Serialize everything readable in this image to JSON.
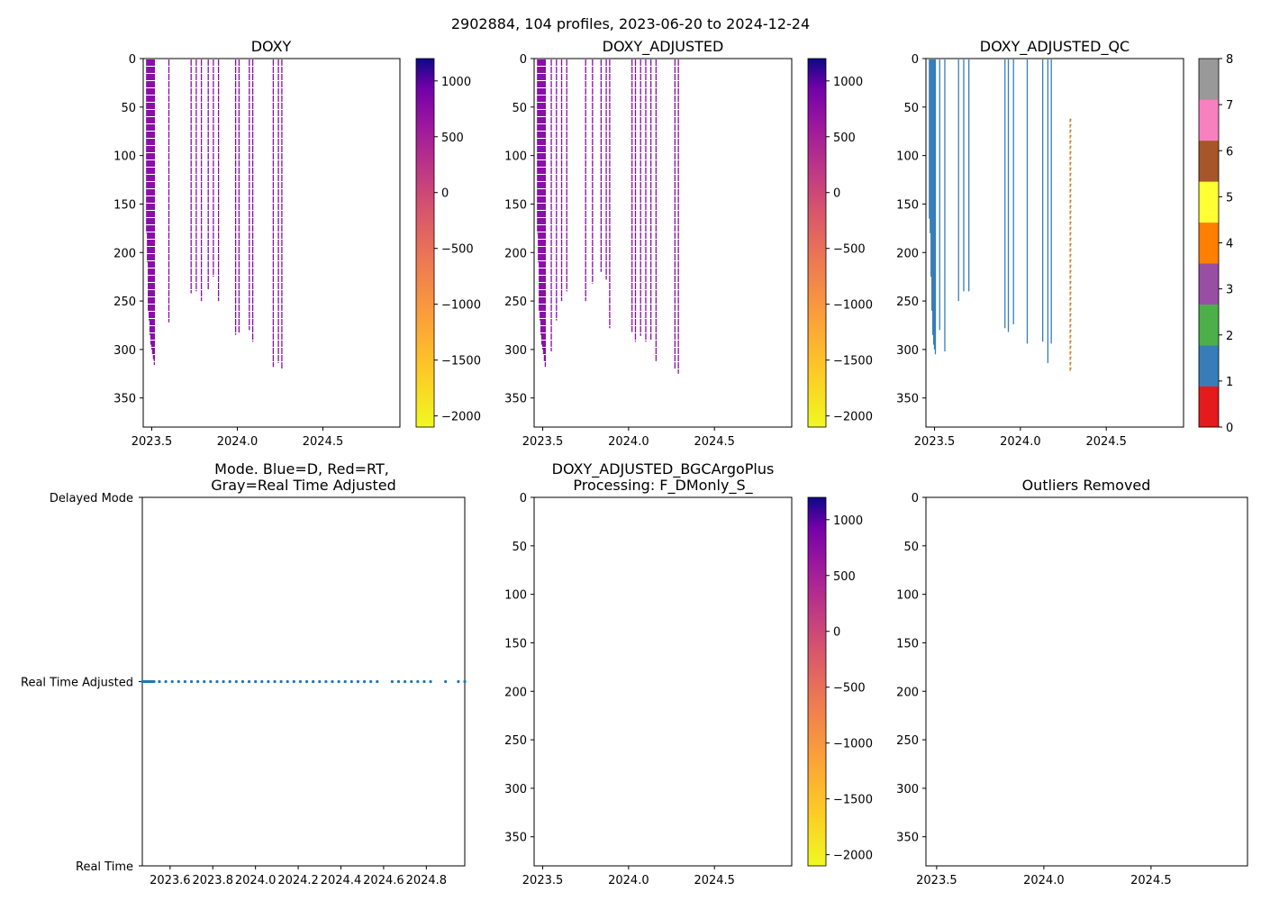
{
  "figure": {
    "suptitle": "2902884, 104 profiles, 2023-06-20 to 2024-12-24"
  },
  "colors": {
    "profile": "#8a0ea8",
    "qc_good": "#377eb8",
    "qc_probably_bad": "#ff7f00",
    "mode_dots": "#1f77b4",
    "qc_palette": [
      "#e41a1c",
      "#377eb8",
      "#4daf4a",
      "#984ea3",
      "#ff7f00",
      "#ffff33",
      "#a65628",
      "#f781bf",
      "#999999"
    ]
  },
  "chart_data": [
    {
      "id": "doxy",
      "type": "heatmap",
      "title": "DOXY",
      "xlim": [
        2023.45,
        2024.95
      ],
      "ylim": [
        380,
        0
      ],
      "xticks": [
        2023.5,
        2024.0,
        2024.5
      ],
      "xtick_labels": [
        "2023.5",
        "2024.0",
        "2024.5"
      ],
      "yticks": [
        0,
        50,
        100,
        150,
        200,
        250,
        300,
        350
      ],
      "colorbar": {
        "range": [
          -2100,
          1200
        ],
        "ticks": [
          1000,
          500,
          0,
          -500,
          -1000,
          -1500,
          -2000
        ],
        "tick_labels": [
          "1000",
          "500",
          "0",
          "−500",
          "−1000",
          "−1500",
          "−2000"
        ],
        "cmap": "plasma_r"
      },
      "profiles": [
        {
          "t": 2023.47,
          "d": 180
        },
        {
          "t": 2023.475,
          "d": 210
        },
        {
          "t": 2023.48,
          "d": 260
        },
        {
          "t": 2023.485,
          "d": 270
        },
        {
          "t": 2023.49,
          "d": 285
        },
        {
          "t": 2023.495,
          "d": 295
        },
        {
          "t": 2023.5,
          "d": 300
        },
        {
          "t": 2023.505,
          "d": 305
        },
        {
          "t": 2023.51,
          "d": 310
        },
        {
          "t": 2023.515,
          "d": 316
        },
        {
          "t": 2023.6,
          "d": 272
        },
        {
          "t": 2023.73,
          "d": 242
        },
        {
          "t": 2023.76,
          "d": 240
        },
        {
          "t": 2023.79,
          "d": 250
        },
        {
          "t": 2023.83,
          "d": 238
        },
        {
          "t": 2023.86,
          "d": 225
        },
        {
          "t": 2023.89,
          "d": 250
        },
        {
          "t": 2023.99,
          "d": 285
        },
        {
          "t": 2024.01,
          "d": 283
        },
        {
          "t": 2024.07,
          "d": 280
        },
        {
          "t": 2024.09,
          "d": 292
        },
        {
          "t": 2024.21,
          "d": 318
        },
        {
          "t": 2024.24,
          "d": 314
        },
        {
          "t": 2024.26,
          "d": 320
        }
      ]
    },
    {
      "id": "doxy_adjusted",
      "type": "heatmap",
      "title": "DOXY_ADJUSTED",
      "xlim": [
        2023.45,
        2024.95
      ],
      "ylim": [
        380,
        0
      ],
      "xticks": [
        2023.5,
        2024.0,
        2024.5
      ],
      "xtick_labels": [
        "2023.5",
        "2024.0",
        "2024.5"
      ],
      "yticks": [
        0,
        50,
        100,
        150,
        200,
        250,
        300,
        350
      ],
      "colorbar": {
        "range": [
          -2100,
          1200
        ],
        "ticks": [
          1000,
          500,
          0,
          -500,
          -1000,
          -1500,
          -2000
        ],
        "tick_labels": [
          "1000",
          "500",
          "0",
          "−500",
          "−1000",
          "−1500",
          "−2000"
        ],
        "cmap": "plasma_r"
      },
      "profiles": [
        {
          "t": 2023.47,
          "d": 180
        },
        {
          "t": 2023.475,
          "d": 210
        },
        {
          "t": 2023.48,
          "d": 260
        },
        {
          "t": 2023.485,
          "d": 270
        },
        {
          "t": 2023.49,
          "d": 285
        },
        {
          "t": 2023.495,
          "d": 295
        },
        {
          "t": 2023.5,
          "d": 300
        },
        {
          "t": 2023.505,
          "d": 305
        },
        {
          "t": 2023.51,
          "d": 312
        },
        {
          "t": 2023.515,
          "d": 318
        },
        {
          "t": 2023.55,
          "d": 302
        },
        {
          "t": 2023.58,
          "d": 270
        },
        {
          "t": 2023.61,
          "d": 250
        },
        {
          "t": 2023.64,
          "d": 240
        },
        {
          "t": 2023.75,
          "d": 250
        },
        {
          "t": 2023.79,
          "d": 232
        },
        {
          "t": 2023.84,
          "d": 220
        },
        {
          "t": 2023.87,
          "d": 228
        },
        {
          "t": 2023.89,
          "d": 278
        },
        {
          "t": 2024.02,
          "d": 282
        },
        {
          "t": 2024.04,
          "d": 292
        },
        {
          "t": 2024.07,
          "d": 286
        },
        {
          "t": 2024.1,
          "d": 292
        },
        {
          "t": 2024.13,
          "d": 290
        },
        {
          "t": 2024.16,
          "d": 312
        },
        {
          "t": 2024.27,
          "d": 320
        },
        {
          "t": 2024.29,
          "d": 325
        }
      ]
    },
    {
      "id": "doxy_adjusted_qc",
      "type": "heatmap",
      "title": "DOXY_ADJUSTED_QC",
      "xlim": [
        2023.45,
        2024.95
      ],
      "ylim": [
        380,
        0
      ],
      "xticks": [
        2023.5,
        2024.0,
        2024.5
      ],
      "xtick_labels": [
        "2023.5",
        "2024.0",
        "2024.5"
      ],
      "yticks": [
        0,
        50,
        100,
        150,
        200,
        250,
        300,
        350
      ],
      "colorbar": {
        "range": [
          0,
          8
        ],
        "ticks": [
          0,
          1,
          2,
          3,
          4,
          5,
          6,
          7,
          8
        ],
        "tick_labels": [
          "0",
          "1",
          "2",
          "3",
          "4",
          "5",
          "6",
          "7",
          "8"
        ],
        "cmap": "qc_palette"
      },
      "profiles": [
        {
          "t": 2023.47,
          "d": 165
        },
        {
          "t": 2023.475,
          "d": 180
        },
        {
          "t": 2023.48,
          "d": 225
        },
        {
          "t": 2023.485,
          "d": 260
        },
        {
          "t": 2023.49,
          "d": 285
        },
        {
          "t": 2023.495,
          "d": 295
        },
        {
          "t": 2023.5,
          "d": 300
        },
        {
          "t": 2023.505,
          "d": 305
        },
        {
          "t": 2023.53,
          "d": 280
        },
        {
          "t": 2023.56,
          "d": 302
        },
        {
          "t": 2023.64,
          "d": 250
        },
        {
          "t": 2023.67,
          "d": 240
        },
        {
          "t": 2023.7,
          "d": 240
        },
        {
          "t": 2023.91,
          "d": 278
        },
        {
          "t": 2023.93,
          "d": 282
        },
        {
          "t": 2023.96,
          "d": 274
        },
        {
          "t": 2024.04,
          "d": 294
        },
        {
          "t": 2024.13,
          "d": 292
        },
        {
          "t": 2024.16,
          "d": 314
        },
        {
          "t": 2024.18,
          "d": 294
        }
      ],
      "flagged_profile": {
        "t": 2024.29,
        "top": 62,
        "bottom": 324,
        "flag": 4
      }
    },
    {
      "id": "mode",
      "type": "scatter",
      "title": "Mode. Blue=D, Red=RT,",
      "title_line2": "Gray=Real Time Adjusted",
      "xlim": [
        2023.47,
        2024.98
      ],
      "y_categories": [
        "Real Time",
        "Real Time Adjusted",
        "Delayed Mode"
      ],
      "xticks": [
        2023.6,
        2023.8,
        2024.0,
        2024.2,
        2024.4,
        2024.6,
        2024.8
      ],
      "xtick_labels": [
        "2023.6",
        "2023.8",
        "2024.0",
        "2024.2",
        "2024.4",
        "2024.6",
        "2024.8"
      ],
      "points_category": "Real Time Adjusted",
      "point_times": [
        2023.47,
        2023.475,
        2023.48,
        2023.485,
        2023.49,
        2023.495,
        2023.5,
        2023.505,
        2023.51,
        2023.515,
        2023.52,
        2023.525,
        2023.55,
        2023.58,
        2023.61,
        2023.64,
        2023.67,
        2023.7,
        2023.73,
        2023.76,
        2023.79,
        2023.82,
        2023.85,
        2023.88,
        2023.91,
        2023.94,
        2023.97,
        2024.0,
        2024.03,
        2024.06,
        2024.09,
        2024.12,
        2024.15,
        2024.18,
        2024.21,
        2024.24,
        2024.27,
        2024.3,
        2024.33,
        2024.36,
        2024.39,
        2024.42,
        2024.45,
        2024.48,
        2024.51,
        2024.54,
        2024.57,
        2024.64,
        2024.67,
        2024.7,
        2024.73,
        2024.76,
        2024.79,
        2024.82,
        2024.89,
        2024.95,
        2024.98
      ]
    },
    {
      "id": "bgc_plus",
      "type": "heatmap",
      "title": "DOXY_ADJUSTED_BGCArgoPlus",
      "title_line2": "Processing: F_DMonly_S_",
      "xlim": [
        2023.45,
        2024.95
      ],
      "ylim": [
        380,
        0
      ],
      "xticks": [
        2023.5,
        2024.0,
        2024.5
      ],
      "xtick_labels": [
        "2023.5",
        "2024.0",
        "2024.5"
      ],
      "yticks": [
        0,
        50,
        100,
        150,
        200,
        250,
        300,
        350
      ],
      "colorbar": {
        "range": [
          -2100,
          1200
        ],
        "ticks": [
          1000,
          500,
          0,
          -500,
          -1000,
          -1500,
          -2000
        ],
        "tick_labels": [
          "1000",
          "500",
          "0",
          "−500",
          "−1000",
          "−1500",
          "−2000"
        ],
        "cmap": "plasma_r"
      },
      "profiles": []
    },
    {
      "id": "outliers",
      "type": "heatmap",
      "title": "Outliers Removed",
      "xlim": [
        2023.45,
        2024.95
      ],
      "ylim": [
        380,
        0
      ],
      "xticks": [
        2023.5,
        2024.0,
        2024.5
      ],
      "xtick_labels": [
        "2023.5",
        "2024.0",
        "2024.5"
      ],
      "yticks": [
        0,
        50,
        100,
        150,
        200,
        250,
        300,
        350
      ],
      "profiles": []
    }
  ]
}
